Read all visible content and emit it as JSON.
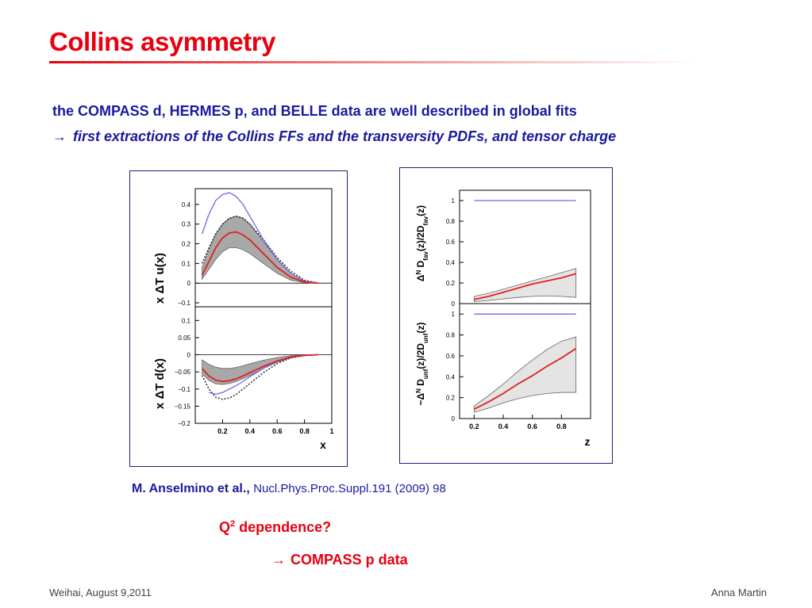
{
  "slide": {
    "title": "Collins asymmetry",
    "statement": "the COMPASS d, HERMES p, and BELLE data are well described in global fits",
    "conclusion_arrow": "→",
    "conclusion": "first extractions of the Collins FFs and the transversity PDFs, and tensor charge",
    "citation_authors": "M. Anselmino et al.,",
    "citation_ref": "Nucl.Phys.Proc.Suppl.191 (2009) 98",
    "q2_prefix": "Q",
    "q2_sup": "2",
    "q2_suffix": " dependence?",
    "compass_arrow": "→",
    "compass_text": "COMPASS p data",
    "footer_left": "Weihai, August 9,2011",
    "footer_right": "Anna Martin"
  },
  "colors": {
    "title": "#e8000f",
    "text": "#1a1a9e",
    "fit": "#e02020",
    "bound": "#6a6ae8",
    "band": "#aaaaaa"
  },
  "chart_data": [
    {
      "type": "line",
      "ylabel": "x ΔT u(x)",
      "xlabel": "",
      "ylim": [
        -0.12,
        0.48
      ],
      "xlim": [
        0,
        1
      ],
      "yticks": [
        "0.4",
        "0.3",
        "0.2",
        "0.1",
        "0",
        "−0.1"
      ],
      "ytick_values": [
        0.4,
        0.3,
        0.2,
        0.1,
        0,
        -0.1
      ],
      "series": [
        {
          "role": "fit",
          "x": [
            0.05,
            0.1,
            0.15,
            0.2,
            0.25,
            0.3,
            0.35,
            0.4,
            0.5,
            0.6,
            0.7,
            0.8,
            0.9
          ],
          "y": [
            0.04,
            0.11,
            0.18,
            0.23,
            0.255,
            0.26,
            0.245,
            0.22,
            0.15,
            0.08,
            0.03,
            0.006,
            0.0
          ]
        },
        {
          "role": "band_upper",
          "x": [
            0.05,
            0.1,
            0.15,
            0.2,
            0.25,
            0.3,
            0.35,
            0.4,
            0.5,
            0.6,
            0.7,
            0.8,
            0.9
          ],
          "y": [
            0.08,
            0.17,
            0.25,
            0.3,
            0.33,
            0.34,
            0.33,
            0.3,
            0.21,
            0.12,
            0.05,
            0.01,
            0.0
          ]
        },
        {
          "role": "band_lower",
          "x": [
            0.05,
            0.1,
            0.15,
            0.2,
            0.25,
            0.3,
            0.35,
            0.4,
            0.5,
            0.6,
            0.7,
            0.8,
            0.9
          ],
          "y": [
            0.02,
            0.07,
            0.12,
            0.16,
            0.18,
            0.18,
            0.17,
            0.15,
            0.1,
            0.05,
            0.015,
            0.003,
            0.0
          ]
        },
        {
          "role": "soffer_bound",
          "x": [
            0.05,
            0.1,
            0.15,
            0.2,
            0.25,
            0.3,
            0.35,
            0.4,
            0.5,
            0.6,
            0.7,
            0.8,
            0.9
          ],
          "y": [
            0.25,
            0.35,
            0.42,
            0.45,
            0.46,
            0.44,
            0.4,
            0.34,
            0.22,
            0.12,
            0.05,
            0.01,
            0.0
          ]
        },
        {
          "role": "dotted",
          "x": [
            0.05,
            0.1,
            0.15,
            0.2,
            0.25,
            0.3,
            0.35,
            0.4,
            0.5,
            0.6,
            0.7,
            0.8,
            0.9
          ],
          "y": [
            0.1,
            0.18,
            0.25,
            0.3,
            0.33,
            0.34,
            0.33,
            0.3,
            0.22,
            0.13,
            0.06,
            0.015,
            0.0
          ]
        }
      ]
    },
    {
      "type": "line",
      "ylabel": "x ΔT d(x)",
      "xlabel": "x",
      "ylim": [
        -0.2,
        0.14
      ],
      "xlim": [
        0,
        1
      ],
      "yticks": [
        "0.1",
        "0.05",
        "0",
        "−0.05",
        "−0.1",
        "−0.15",
        "−0.2"
      ],
      "ytick_values": [
        0.1,
        0.05,
        0,
        -0.05,
        -0.1,
        -0.15,
        -0.2
      ],
      "xticks": [
        "0.2",
        "0.4",
        "0.6",
        "0.8",
        "1"
      ],
      "xtick_values": [
        0.2,
        0.4,
        0.6,
        0.8,
        1.0
      ],
      "series": [
        {
          "role": "fit",
          "x": [
            0.05,
            0.1,
            0.15,
            0.2,
            0.25,
            0.3,
            0.35,
            0.4,
            0.5,
            0.6,
            0.7,
            0.8,
            0.9
          ],
          "y": [
            -0.04,
            -0.062,
            -0.074,
            -0.078,
            -0.076,
            -0.07,
            -0.062,
            -0.052,
            -0.034,
            -0.018,
            -0.007,
            -0.002,
            0.0
          ]
        },
        {
          "role": "band_upper",
          "x": [
            0.05,
            0.1,
            0.15,
            0.2,
            0.25,
            0.3,
            0.35,
            0.4,
            0.5,
            0.6,
            0.7,
            0.8,
            0.9
          ],
          "y": [
            -0.015,
            -0.028,
            -0.036,
            -0.04,
            -0.04,
            -0.037,
            -0.032,
            -0.026,
            -0.016,
            -0.008,
            -0.003,
            -0.001,
            0.0
          ]
        },
        {
          "role": "band_lower",
          "x": [
            0.05,
            0.1,
            0.15,
            0.2,
            0.25,
            0.3,
            0.35,
            0.4,
            0.5,
            0.6,
            0.7,
            0.8,
            0.9
          ],
          "y": [
            -0.055,
            -0.075,
            -0.085,
            -0.087,
            -0.084,
            -0.078,
            -0.07,
            -0.06,
            -0.04,
            -0.022,
            -0.009,
            -0.002,
            0.0
          ]
        },
        {
          "role": "soffer_bound",
          "x": [
            0.1,
            0.15,
            0.2,
            0.25,
            0.3,
            0.35,
            0.4,
            0.5,
            0.6,
            0.7,
            0.8,
            0.9
          ],
          "y": [
            -0.11,
            -0.115,
            -0.11,
            -0.1,
            -0.09,
            -0.078,
            -0.064,
            -0.04,
            -0.02,
            -0.007,
            -0.001,
            0.0
          ]
        },
        {
          "role": "dotted",
          "x": [
            0.05,
            0.1,
            0.15,
            0.2,
            0.25,
            0.3,
            0.35,
            0.4,
            0.5,
            0.6,
            0.7,
            0.8,
            0.9
          ],
          "y": [
            -0.06,
            -0.1,
            -0.124,
            -0.13,
            -0.126,
            -0.116,
            -0.1,
            -0.084,
            -0.052,
            -0.026,
            -0.009,
            -0.002,
            0.0
          ]
        }
      ]
    },
    {
      "type": "line",
      "ylabel": "Δ^N D_fav(z)/2D_fav(z)",
      "xlabel": "",
      "ylim": [
        0,
        1.1
      ],
      "xlim": [
        0.1,
        1.0
      ],
      "yticks": [
        "1",
        "0.8",
        "0.6",
        "0.4",
        "0.2",
        "0"
      ],
      "ytick_values": [
        1,
        0.8,
        0.6,
        0.4,
        0.2,
        0
      ],
      "series": [
        {
          "role": "fit",
          "x": [
            0.2,
            0.3,
            0.4,
            0.5,
            0.6,
            0.7,
            0.8,
            0.9
          ],
          "y": [
            0.04,
            0.07,
            0.11,
            0.15,
            0.19,
            0.22,
            0.25,
            0.29
          ]
        },
        {
          "role": "band_upper",
          "x": [
            0.2,
            0.3,
            0.4,
            0.5,
            0.6,
            0.7,
            0.8,
            0.9
          ],
          "y": [
            0.07,
            0.1,
            0.14,
            0.18,
            0.22,
            0.26,
            0.3,
            0.34
          ]
        },
        {
          "role": "band_lower",
          "x": [
            0.2,
            0.3,
            0.4,
            0.5,
            0.6,
            0.7,
            0.8,
            0.9
          ],
          "y": [
            0.02,
            0.03,
            0.045,
            0.06,
            0.07,
            0.075,
            0.07,
            0.06
          ]
        },
        {
          "role": "soffer_bound",
          "x": [
            0.2,
            0.9
          ],
          "y": [
            1.0,
            1.0
          ]
        }
      ]
    },
    {
      "type": "line",
      "ylabel": "−Δ^N D_unf(z)/2D_unf(z)",
      "xlabel": "z",
      "ylim": [
        0,
        1.1
      ],
      "xlim": [
        0.1,
        1.0
      ],
      "yticks": [
        "1",
        "0.8",
        "0.6",
        "0.4",
        "0.2",
        "0"
      ],
      "ytick_values": [
        1,
        0.8,
        0.6,
        0.4,
        0.2,
        0
      ],
      "xticks": [
        "0.2",
        "0.4",
        "0.6",
        "0.8"
      ],
      "xtick_values": [
        0.2,
        0.4,
        0.6,
        0.8
      ],
      "series": [
        {
          "role": "fit",
          "x": [
            0.2,
            0.3,
            0.4,
            0.5,
            0.6,
            0.7,
            0.8,
            0.9
          ],
          "y": [
            0.09,
            0.16,
            0.24,
            0.33,
            0.41,
            0.5,
            0.58,
            0.67
          ]
        },
        {
          "role": "band_upper",
          "x": [
            0.2,
            0.3,
            0.4,
            0.5,
            0.6,
            0.7,
            0.8,
            0.9
          ],
          "y": [
            0.12,
            0.22,
            0.33,
            0.45,
            0.56,
            0.66,
            0.74,
            0.78
          ]
        },
        {
          "role": "band_lower",
          "x": [
            0.2,
            0.3,
            0.4,
            0.5,
            0.6,
            0.7,
            0.8,
            0.9
          ],
          "y": [
            0.06,
            0.1,
            0.15,
            0.19,
            0.22,
            0.24,
            0.25,
            0.25
          ]
        },
        {
          "role": "soffer_bound",
          "x": [
            0.2,
            0.9
          ],
          "y": [
            1.0,
            1.0
          ]
        }
      ]
    }
  ]
}
